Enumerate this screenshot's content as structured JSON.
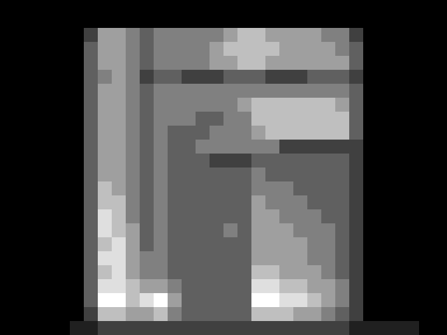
{
  "chart_data": {
    "type": "heatmap",
    "tick_labels": false,
    "cells": [
      [
        0,
        0,
        0,
        0,
        0,
        0,
        0,
        0,
        0,
        0,
        0,
        0,
        0,
        0,
        0,
        0,
        0,
        0,
        0,
        0,
        0,
        0,
        0,
        0,
        0,
        0,
        0,
        0,
        0,
        0,
        0,
        0
      ],
      [
        0,
        0,
        0,
        0,
        0,
        0,
        0,
        0,
        0,
        0,
        0,
        0,
        0,
        0,
        0,
        0,
        0,
        0,
        0,
        0,
        0,
        0,
        0,
        0,
        0,
        0,
        0,
        0,
        0,
        0,
        0,
        0
      ],
      [
        0,
        0,
        0,
        0,
        0,
        0,
        2,
        5,
        5,
        4,
        3,
        4,
        4,
        4,
        4,
        4,
        5,
        6,
        6,
        5,
        5,
        5,
        5,
        4,
        4,
        2,
        0,
        0,
        0,
        0,
        0,
        0
      ],
      [
        0,
        0,
        0,
        0,
        0,
        0,
        3,
        5,
        5,
        4,
        3,
        4,
        4,
        4,
        4,
        5,
        6,
        6,
        6,
        6,
        5,
        5,
        5,
        5,
        4,
        3,
        0,
        0,
        0,
        0,
        0,
        0
      ],
      [
        0,
        0,
        0,
        0,
        0,
        0,
        3,
        5,
        5,
        4,
        3,
        4,
        4,
        4,
        4,
        5,
        5,
        6,
        6,
        5,
        5,
        5,
        5,
        5,
        5,
        3,
        0,
        0,
        0,
        0,
        0,
        0
      ],
      [
        0,
        0,
        0,
        0,
        0,
        0,
        3,
        4,
        5,
        4,
        2,
        3,
        3,
        2,
        2,
        2,
        3,
        3,
        3,
        2,
        2,
        2,
        3,
        3,
        3,
        2,
        0,
        0,
        0,
        0,
        0,
        0
      ],
      [
        0,
        0,
        0,
        0,
        0,
        0,
        3,
        5,
        5,
        4,
        3,
        4,
        4,
        4,
        4,
        4,
        4,
        4,
        4,
        4,
        4,
        4,
        4,
        4,
        4,
        3,
        0,
        0,
        0,
        0,
        0,
        0
      ],
      [
        0,
        0,
        0,
        0,
        0,
        0,
        3,
        5,
        5,
        4,
        3,
        4,
        4,
        4,
        4,
        4,
        4,
        5,
        6,
        6,
        6,
        6,
        6,
        6,
        5,
        3,
        0,
        0,
        0,
        0,
        0,
        0
      ],
      [
        0,
        0,
        0,
        0,
        0,
        0,
        3,
        5,
        5,
        4,
        3,
        4,
        4,
        4,
        3,
        3,
        4,
        4,
        6,
        6,
        6,
        6,
        6,
        6,
        6,
        3,
        0,
        0,
        0,
        0,
        0,
        0
      ],
      [
        0,
        0,
        0,
        0,
        0,
        0,
        3,
        5,
        5,
        4,
        3,
        4,
        3,
        3,
        3,
        4,
        4,
        4,
        5,
        6,
        6,
        6,
        6,
        6,
        6,
        3,
        0,
        0,
        0,
        0,
        0,
        0
      ],
      [
        0,
        0,
        0,
        0,
        0,
        0,
        3,
        5,
        5,
        4,
        3,
        4,
        3,
        3,
        4,
        4,
        4,
        4,
        4,
        4,
        2,
        2,
        2,
        2,
        2,
        2,
        0,
        0,
        0,
        0,
        0,
        0
      ],
      [
        0,
        0,
        0,
        0,
        0,
        0,
        3,
        5,
        5,
        4,
        3,
        4,
        3,
        3,
        3,
        2,
        2,
        2,
        3,
        3,
        3,
        3,
        3,
        3,
        3,
        2,
        0,
        0,
        0,
        0,
        0,
        0
      ],
      [
        0,
        0,
        0,
        0,
        0,
        0,
        3,
        5,
        5,
        4,
        3,
        4,
        3,
        3,
        3,
        3,
        3,
        3,
        4,
        3,
        3,
        3,
        3,
        3,
        3,
        2,
        0,
        0,
        0,
        0,
        0,
        0
      ],
      [
        0,
        0,
        0,
        0,
        0,
        0,
        3,
        6,
        5,
        4,
        3,
        4,
        3,
        3,
        3,
        3,
        3,
        3,
        4,
        4,
        4,
        3,
        3,
        3,
        3,
        2,
        0,
        0,
        0,
        0,
        0,
        0
      ],
      [
        0,
        0,
        0,
        0,
        0,
        0,
        3,
        6,
        6,
        4,
        3,
        4,
        3,
        3,
        3,
        3,
        3,
        3,
        5,
        4,
        4,
        4,
        3,
        3,
        3,
        2,
        0,
        0,
        0,
        0,
        0,
        0
      ],
      [
        0,
        0,
        0,
        0,
        0,
        0,
        3,
        7,
        6,
        4,
        3,
        4,
        3,
        3,
        3,
        3,
        3,
        3,
        5,
        5,
        4,
        4,
        4,
        3,
        3,
        2,
        0,
        0,
        0,
        0,
        0,
        0
      ],
      [
        0,
        0,
        0,
        0,
        0,
        0,
        3,
        7,
        6,
        5,
        3,
        4,
        3,
        3,
        3,
        3,
        4,
        3,
        5,
        5,
        5,
        4,
        4,
        4,
        3,
        2,
        0,
        0,
        0,
        0,
        0,
        0
      ],
      [
        0,
        0,
        0,
        0,
        0,
        0,
        3,
        6,
        7,
        5,
        3,
        4,
        3,
        3,
        3,
        3,
        3,
        3,
        5,
        5,
        5,
        5,
        4,
        4,
        3,
        2,
        0,
        0,
        0,
        0,
        0,
        0
      ],
      [
        0,
        0,
        0,
        0,
        0,
        0,
        3,
        7,
        7,
        5,
        4,
        4,
        3,
        3,
        3,
        3,
        3,
        3,
        5,
        5,
        5,
        5,
        4,
        4,
        3,
        2,
        0,
        0,
        0,
        0,
        0,
        0
      ],
      [
        0,
        0,
        0,
        0,
        0,
        0,
        3,
        6,
        7,
        5,
        4,
        4,
        3,
        3,
        3,
        3,
        3,
        3,
        6,
        6,
        5,
        5,
        5,
        4,
        3,
        2,
        0,
        0,
        0,
        0,
        0,
        0
      ],
      [
        0,
        0,
        0,
        0,
        0,
        0,
        3,
        7,
        7,
        6,
        5,
        5,
        4,
        3,
        3,
        3,
        3,
        3,
        7,
        7,
        6,
        6,
        5,
        5,
        4,
        2,
        0,
        0,
        0,
        0,
        0,
        0
      ],
      [
        0,
        0,
        0,
        0,
        0,
        0,
        3,
        8,
        8,
        6,
        7,
        8,
        5,
        3,
        3,
        3,
        3,
        3,
        8,
        8,
        7,
        7,
        6,
        5,
        4,
        2,
        0,
        0,
        0,
        0,
        0,
        0
      ],
      [
        0,
        0,
        0,
        0,
        0,
        0,
        2,
        6,
        6,
        5,
        5,
        6,
        4,
        3,
        3,
        3,
        3,
        3,
        6,
        6,
        6,
        5,
        5,
        4,
        3,
        2,
        0,
        0,
        0,
        0,
        0,
        0
      ],
      [
        0,
        0,
        0,
        0,
        0,
        1,
        1,
        2,
        2,
        2,
        2,
        2,
        2,
        2,
        2,
        2,
        2,
        2,
        2,
        2,
        2,
        2,
        2,
        2,
        2,
        1,
        1,
        1,
        1,
        1,
        0,
        0
      ]
    ]
  }
}
